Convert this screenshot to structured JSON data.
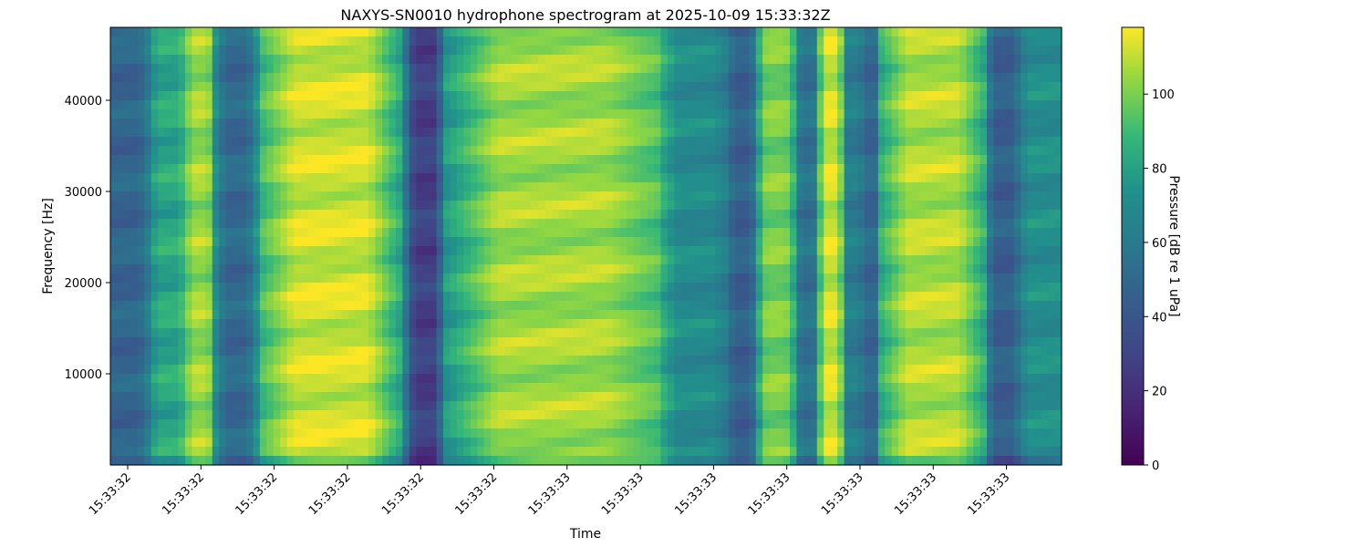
{
  "chart_data": {
    "type": "heatmap",
    "title": "NAXYS-SN0010 hydrophone spectrogram at 2025-10-09 15:33:32Z",
    "xlabel": "Time",
    "ylabel": "Frequency [Hz]",
    "x_tick_labels": [
      "15:33:32",
      "15:33:32",
      "15:33:32",
      "15:33:32",
      "15:33:32",
      "15:33:32",
      "15:33:33",
      "15:33:33",
      "15:33:33",
      "15:33:33",
      "15:33:33",
      "15:33:33",
      "15:33:33"
    ],
    "y_ticks": [
      10000,
      20000,
      30000,
      40000
    ],
    "ylim": [
      0,
      48000
    ],
    "colorbar": {
      "label": "Pressure [dB re 1 uPa]",
      "ticks": [
        0,
        20,
        40,
        60,
        80,
        100
      ],
      "range": [
        0,
        118
      ],
      "colormap": "viridis"
    },
    "time_bands": [
      {
        "start": 0.0,
        "end": 0.04,
        "level": 48
      },
      {
        "start": 0.04,
        "end": 0.08,
        "level": 82
      },
      {
        "start": 0.08,
        "end": 0.11,
        "level": 105
      },
      {
        "start": 0.11,
        "end": 0.155,
        "level": 50
      },
      {
        "start": 0.155,
        "end": 0.31,
        "level": 112
      },
      {
        "start": 0.31,
        "end": 0.35,
        "level": 28
      },
      {
        "start": 0.35,
        "end": 0.58,
        "level": 106
      },
      {
        "start": 0.58,
        "end": 0.65,
        "level": 70
      },
      {
        "start": 0.65,
        "end": 0.68,
        "level": 45
      },
      {
        "start": 0.68,
        "end": 0.72,
        "level": 100
      },
      {
        "start": 0.72,
        "end": 0.745,
        "level": 55
      },
      {
        "start": 0.745,
        "end": 0.77,
        "level": 112
      },
      {
        "start": 0.77,
        "end": 0.79,
        "level": 62
      },
      {
        "start": 0.79,
        "end": 0.81,
        "level": 50
      },
      {
        "start": 0.81,
        "end": 0.92,
        "level": 108
      },
      {
        "start": 0.92,
        "end": 0.955,
        "level": 45
      },
      {
        "start": 0.955,
        "end": 1.0,
        "level": 72
      }
    ]
  }
}
